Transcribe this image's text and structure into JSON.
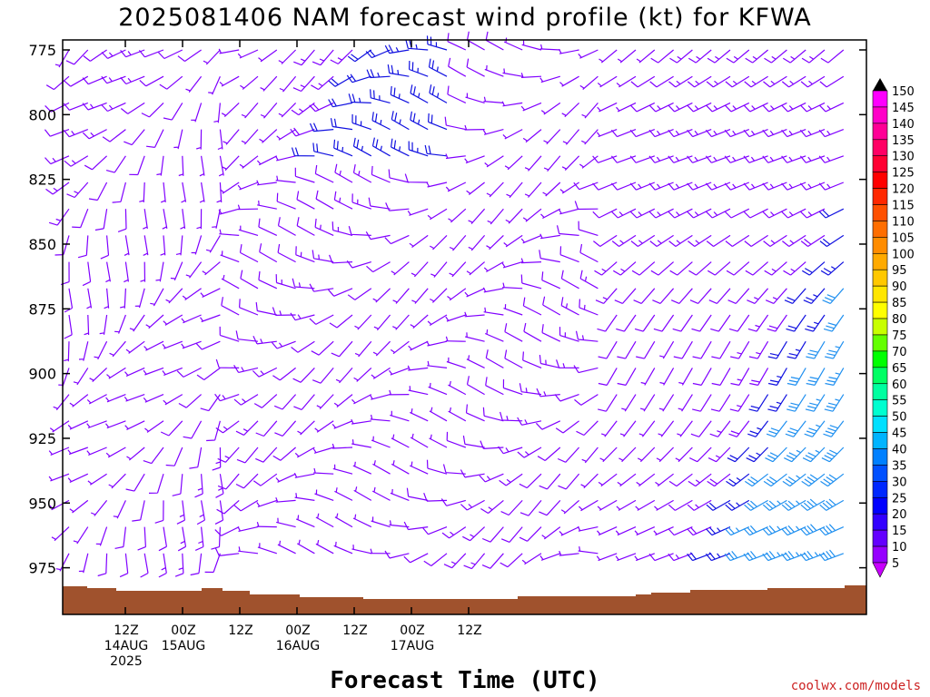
{
  "title": "2025081406 NAM forecast wind profile (kt) for KFWA",
  "credit": "coolwx.com/models",
  "colors": {
    "ground": "#a0522d",
    "barb_default": "#8000ff",
    "barb_blue": "#1010e0",
    "barb_lightblue": "#2090f0"
  },
  "chart_data": {
    "type": "wind_barb_profile",
    "title": "2025081406 NAM forecast wind profile (kt) for KFWA",
    "xlabel": "Forecast Time (UTC)",
    "ylabel": "",
    "ylim": [
      990,
      770
    ],
    "y_ticks": [
      "775",
      "800",
      "825",
      "850",
      "875",
      "900",
      "925",
      "950",
      "975"
    ],
    "x_ticks": [
      {
        "line1": "12Z",
        "line2": "14AUG",
        "line3": "2025"
      },
      {
        "line1": "00Z",
        "line2": "15AUG",
        "line3": ""
      },
      {
        "line1": "12Z",
        "line2": "",
        "line3": ""
      },
      {
        "line1": "00Z",
        "line2": "16AUG",
        "line3": ""
      },
      {
        "line1": "12Z",
        "line2": "",
        "line3": ""
      },
      {
        "line1": "00Z",
        "line2": "17AUG",
        "line3": ""
      },
      {
        "line1": "12Z",
        "line2": "",
        "line3": ""
      }
    ],
    "colorbar": {
      "labels": [
        "150",
        "145",
        "140",
        "135",
        "130",
        "125",
        "120",
        "115",
        "110",
        "105",
        "100",
        "95",
        "90",
        "85",
        "80",
        "75",
        "70",
        "65",
        "60",
        "55",
        "50",
        "45",
        "40",
        "35",
        "30",
        "25",
        "20",
        "15",
        "10",
        "5"
      ],
      "colors": [
        "#000000",
        "#ff00ff",
        "#ff00c8",
        "#ff0096",
        "#ff0064",
        "#ff0032",
        "#ff0000",
        "#ff2800",
        "#ff5000",
        "#ff6e00",
        "#ff8c00",
        "#ffaa00",
        "#ffc800",
        "#ffe600",
        "#ffff00",
        "#c8ff00",
        "#64ff00",
        "#00ff00",
        "#00ff64",
        "#00ffa0",
        "#00ffd0",
        "#00e0ff",
        "#00b4ff",
        "#0080ff",
        "#0050ff",
        "#0028ff",
        "#0000ff",
        "#3200ff",
        "#6400ff",
        "#9600ff",
        "#c800ff"
      ]
    },
    "wind_pattern": "light (5-15 kt) mostly westerly flow; stronger 20-35 kt southwesterly flow in lower levels toward end of period",
    "surface_pressure_hpa_approx": 984
  }
}
